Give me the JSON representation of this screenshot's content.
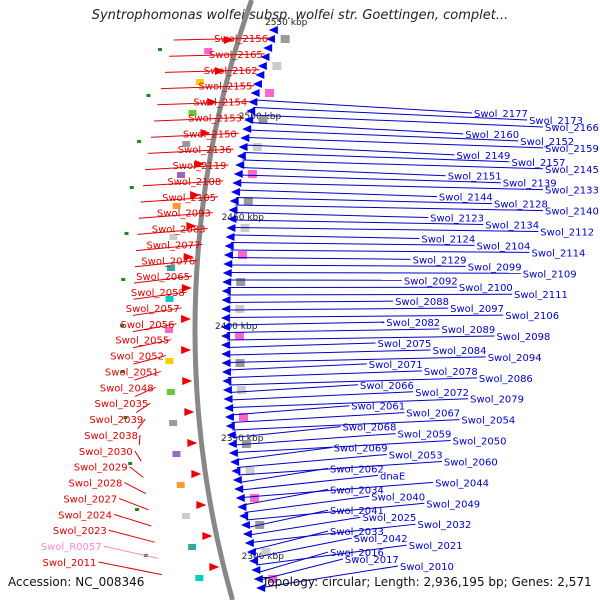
{
  "title": "Syntrophomonas wolfei subsp. wolfei str. Goettingen, complet...",
  "footer": {
    "accession": "Accession: NC_008346",
    "topology": "Topology: circular; Length: 2,936,195 bp; Genes: 2,571"
  },
  "colors": {
    "left_label": "#e00000",
    "left_label_rna": "#ff88cc",
    "right_label": "#0000cc",
    "backbone": "#888888",
    "forward_arrow": "#ee0000",
    "reverse_arrow": "#0000ee"
  },
  "kbp_markers": [
    "2550 kbp",
    "2500 kbp",
    "2450 kbp",
    "2400 kbp",
    "2350 kbp",
    "2300 kbp"
  ],
  "left_labels": [
    "Swol_2156",
    "Swol_2165",
    "Swol_2162",
    "Swol_2155",
    "Swol_2154",
    "Swol_2153",
    "Swol_2150",
    "Swol_2136",
    "Swol_2119",
    "Swol_2108",
    "Swol_2105",
    "Swol_2093",
    "Swol_2083",
    "Swol_2077",
    "Swol_2076",
    "Swol_2065",
    "Swol_2058",
    "Swol_2057",
    "Swol_2056",
    "Swol_2055",
    "Swol_2052",
    "Swol_2051",
    "Swol_2048",
    "Swol_2035",
    "Swol_2039",
    "Swol_2038",
    "Swol_2030",
    "Swol_2029",
    "Swol_2028",
    "Swol_2027",
    "Swol_2024",
    "Swol_2023",
    "Swol_R0057",
    "Swol_2011"
  ],
  "right_labels": [
    "Swol_2177",
    "Swol_2173",
    "Swol_2166",
    "Swol_2160",
    "Swol_2152",
    "Swol_2159",
    "Swol_2149",
    "Swol_2157",
    "Swol_2145",
    "Swol_2151",
    "Swol_2139",
    "Swol_2133",
    "Swol_2144",
    "Swol_2128",
    "Swol_2140",
    "Swol_2123",
    "Swol_2134",
    "Swol_2112",
    "Swol_2124",
    "Swol_2104",
    "Swol_2114",
    "Swol_2129",
    "Swol_2099",
    "Swol_2109",
    "Swol_2092",
    "Swol_2100",
    "Swol_2111",
    "Swol_2088",
    "Swol_2097",
    "Swol_2106",
    "Swol_2082",
    "Swol_2089",
    "Swol_2098",
    "Swol_2075",
    "Swol_2084",
    "Swol_2094",
    "Swol_2071",
    "Swol_2078",
    "Swol_2086",
    "Swol_2066",
    "Swol_2072",
    "Swol_2079",
    "Swol_2061",
    "Swol_2067",
    "Swol_2054",
    "Swol_2068",
    "Swol_2059",
    "Swol_2050",
    "Swol_2069",
    "Swol_2053",
    "Swol_2060",
    "Swol_2062",
    "dnaE",
    "Swol_2044",
    "Swol_2034",
    "Swol_2040",
    "Swol_2049",
    "Swol_2041",
    "Swol_2025",
    "Swol_2032",
    "Swol_2033",
    "Swol_2042",
    "Swol_2021",
    "Swol_2016",
    "Swol_2017",
    "Swol_2010"
  ]
}
